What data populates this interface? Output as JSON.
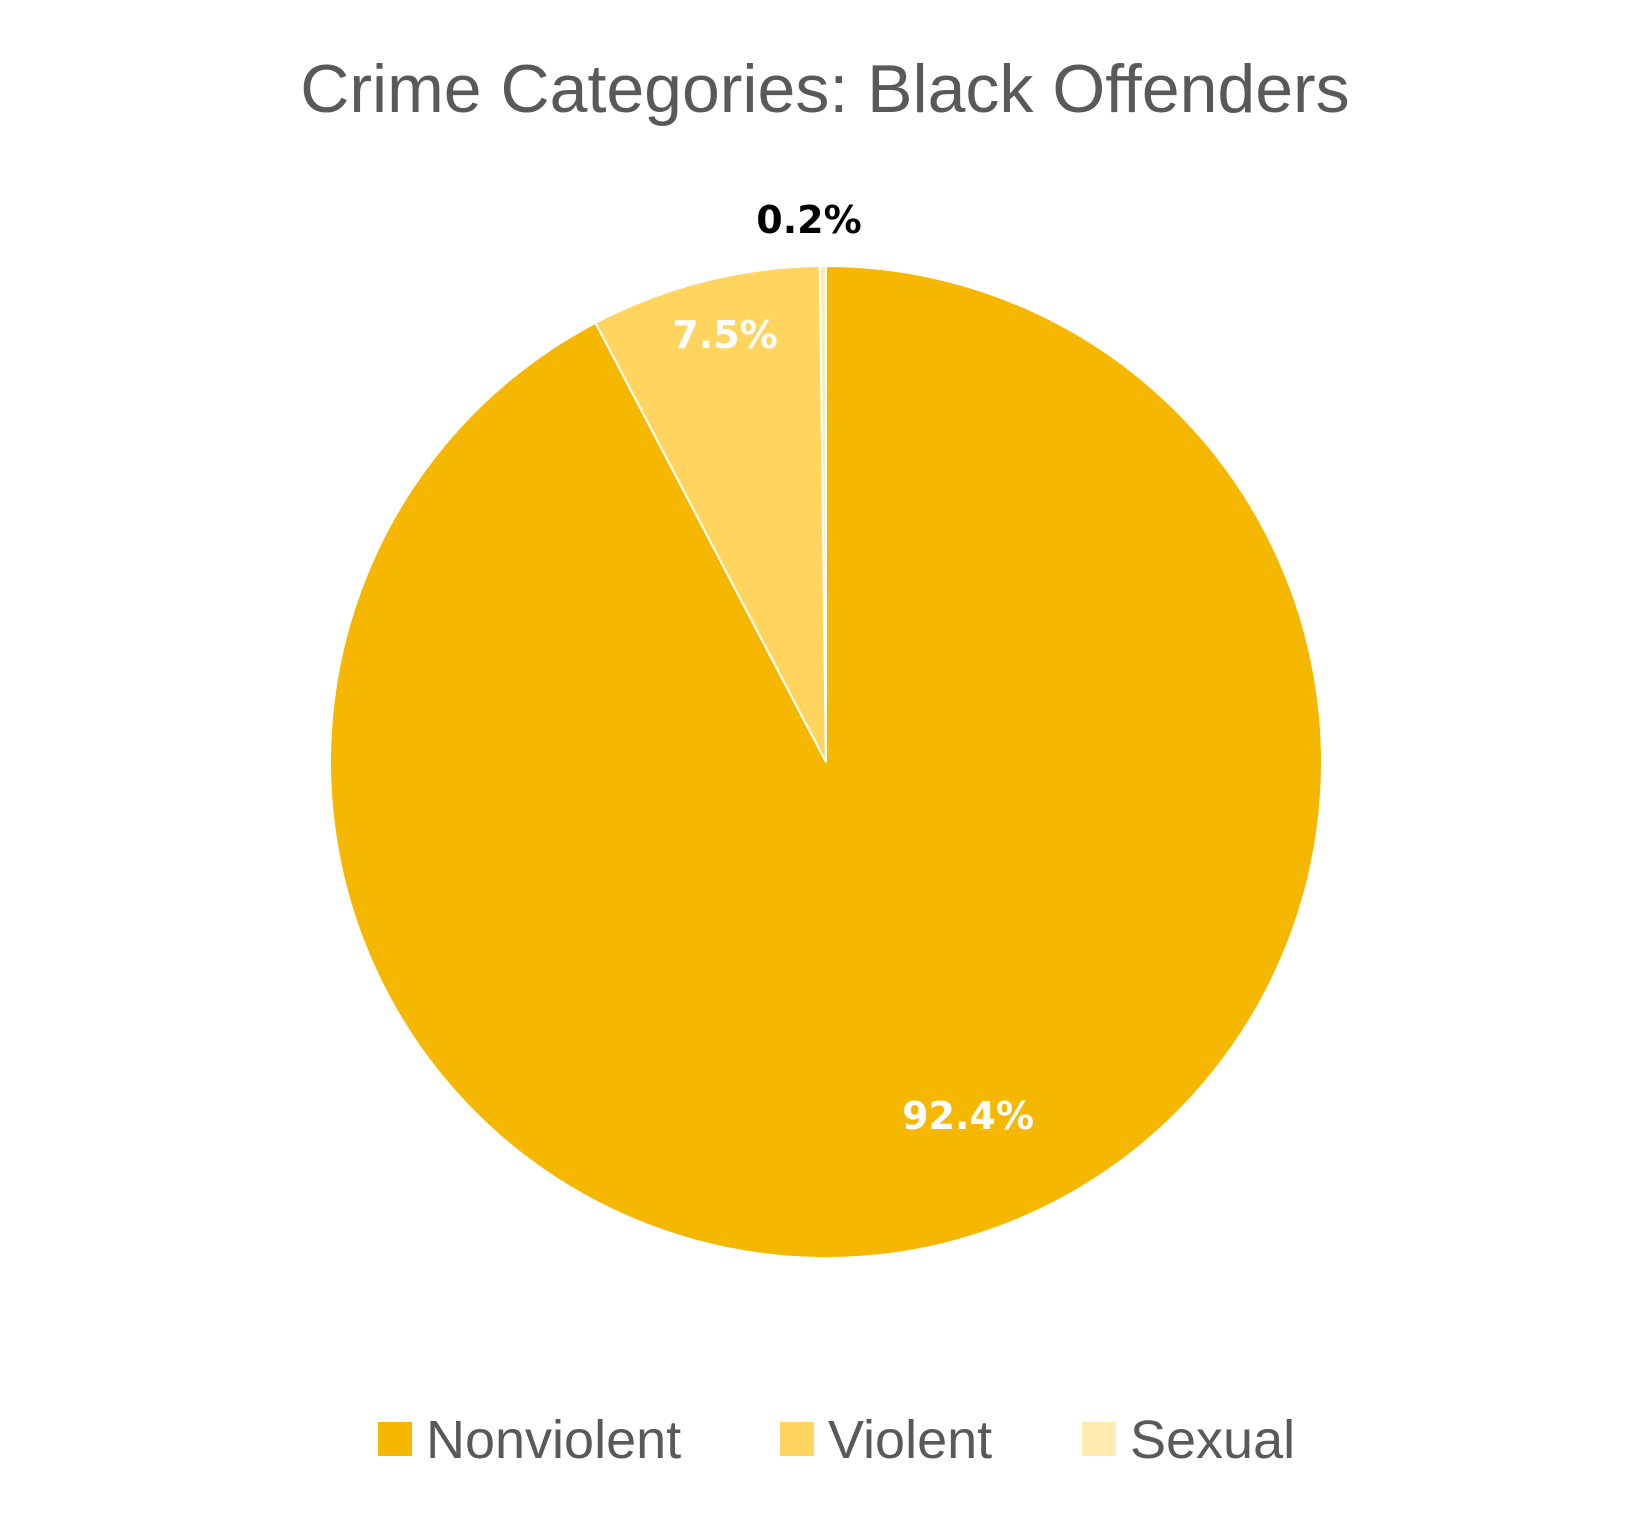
{
  "chart_data": {
    "type": "pie",
    "title": "Crime Categories: Black Offenders",
    "legend_position": "bottom",
    "slices": [
      {
        "name": "Nonviolent",
        "value": 92.4,
        "label": "92.4%",
        "color": "#F6B700",
        "label_color": "#FFFFFF"
      },
      {
        "name": "Violent",
        "value": 7.5,
        "label": "7.5%",
        "color": "#FFD45F",
        "label_color": "#FFFFFF"
      },
      {
        "name": "Sexual",
        "value": 0.2,
        "label": "0.2%",
        "color": "#FFEAB0",
        "label_color": "#000000"
      }
    ]
  }
}
